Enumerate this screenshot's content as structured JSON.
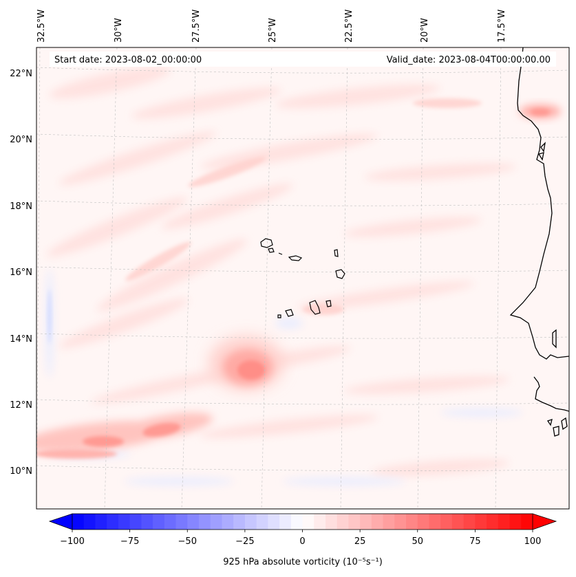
{
  "header": {
    "start_date": "Start date: 2023-08-02_00:00:00",
    "valid_date": "Valid_date: 2023-08-04T00:00:00.00"
  },
  "map": {
    "lon_labels": [
      "32.5°W",
      "30°W",
      "27.5°W",
      "25°W",
      "22.5°W",
      "20°W",
      "17.5°W"
    ],
    "lat_labels": [
      "22°N",
      "20°N",
      "18°N",
      "16°N",
      "14°N",
      "12°N",
      "10°N"
    ],
    "extent": {
      "lon_min": -32.8,
      "lon_max": -15.8,
      "lat_min": 8.8,
      "lat_max": 22.8
    }
  },
  "colorbar": {
    "min": -100,
    "max": 100,
    "ticks": [
      "−100",
      "−75",
      "−50",
      "−25",
      "0",
      "25",
      "50",
      "75",
      "100"
    ],
    "tick_values": [
      -100,
      -75,
      -50,
      -25,
      0,
      25,
      50,
      75,
      100
    ],
    "label": "925 hPa absolute vorticity (10⁻⁵s⁻¹)",
    "colormap": "bwr",
    "low_color": "#0000ff",
    "mid_color": "#ffffff",
    "high_color": "#ff0000"
  },
  "features": {
    "vortex": {
      "lon": -24.3,
      "lat": 13.0,
      "label": "max vorticity blob"
    },
    "islands": "Cape Verde"
  }
}
